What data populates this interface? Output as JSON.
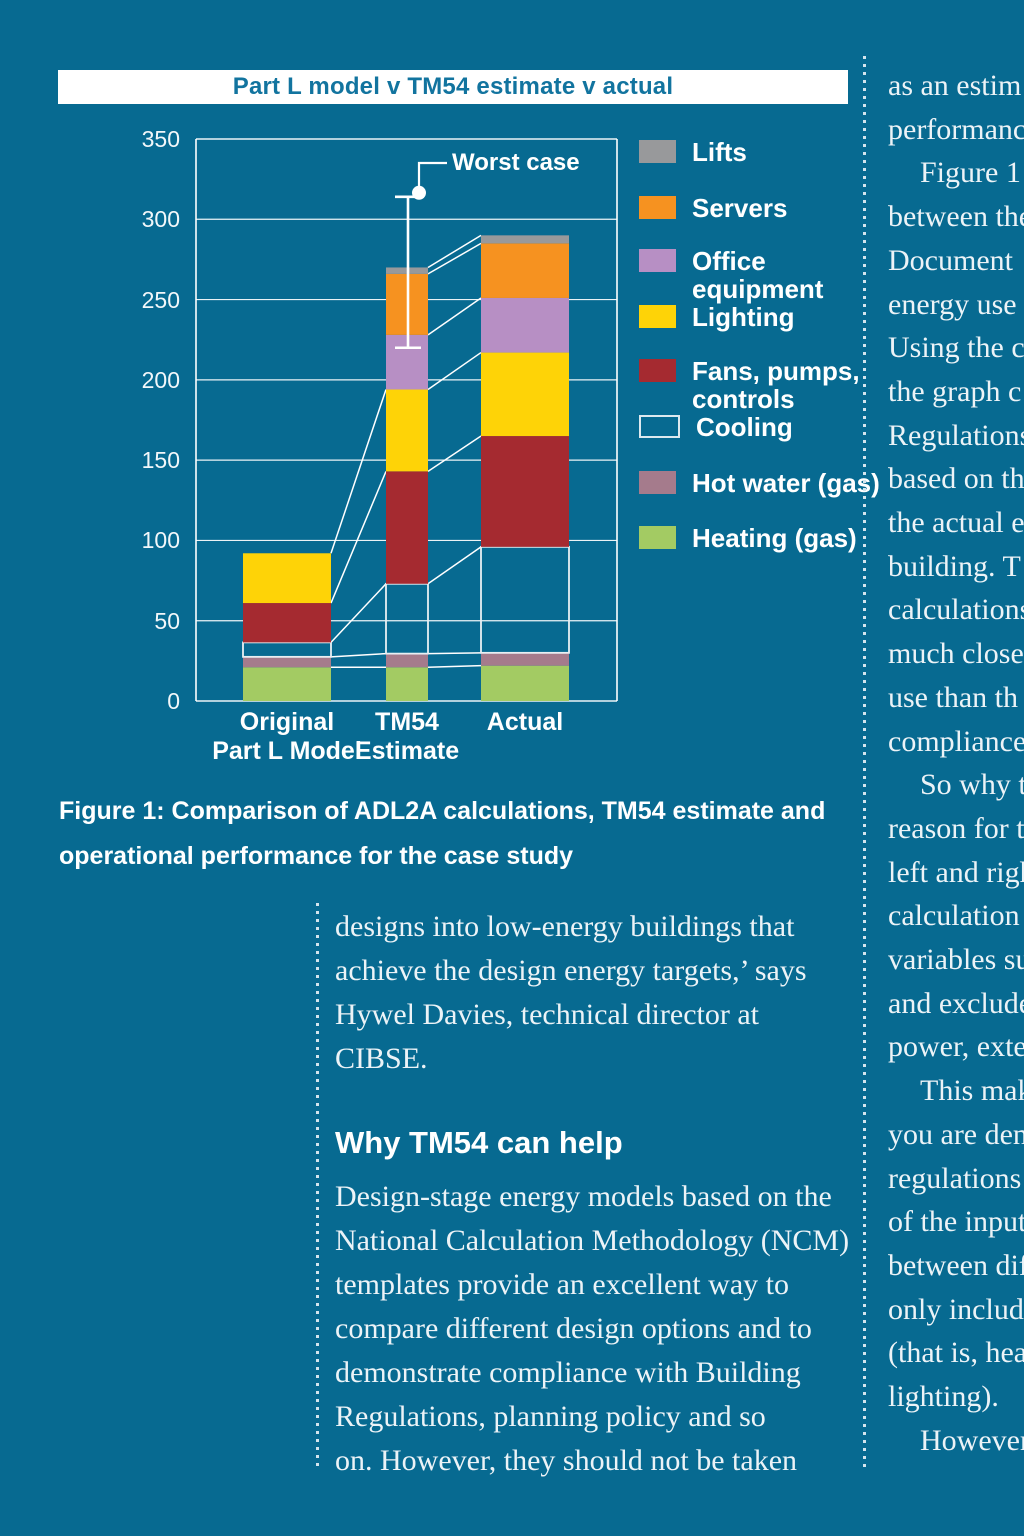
{
  "page": {
    "background": "#076a91"
  },
  "chart": {
    "title": "Part L model v TM54 estimate v actual",
    "title_color": "#12749f"
  },
  "chart_data": {
    "type": "bar",
    "stacked": true,
    "title": "Part L model v TM54 estimate v actual",
    "categories": [
      "Original Part L Model",
      "TM54 Estimate",
      "Actual"
    ],
    "category_label_lines": [
      [
        "Original",
        "Part L Model"
      ],
      [
        "TM54",
        "Estimate"
      ],
      [
        "Actual"
      ]
    ],
    "series": [
      {
        "name": "Heating (gas)",
        "color": "#a3cb63",
        "values": [
          21,
          21,
          22
        ]
      },
      {
        "name": "Hot water (gas)",
        "color": "#a57b8c",
        "values": [
          6.5,
          8.5,
          8
        ]
      },
      {
        "name": "Cooling",
        "color": "outline",
        "values": [
          9,
          43.5,
          66
        ]
      },
      {
        "name": "Fans, pumps, controls",
        "color": "#a52a30",
        "values": [
          24.5,
          70,
          69
        ]
      },
      {
        "name": "Lighting",
        "color": "#fed307",
        "values": [
          31,
          51,
          52
        ]
      },
      {
        "name": "Office equipment",
        "color": "#b78fc4",
        "values": [
          0,
          34,
          34
        ]
      },
      {
        "name": "Servers",
        "color": "#f69220",
        "values": [
          0,
          38,
          34
        ]
      },
      {
        "name": "Lifts",
        "color": "#98999b",
        "values": [
          0,
          4,
          5
        ]
      }
    ],
    "totals": [
      92,
      270,
      290
    ],
    "error_bar": {
      "category": "TM54 Estimate",
      "label": "Worst case",
      "low": 220,
      "high": 314
    },
    "connectors": [
      {
        "from": 0,
        "boundaries": [
          0,
          1,
          2,
          3,
          4
        ]
      },
      {
        "from": 1,
        "boundaries": [
          0,
          1,
          2,
          3,
          4,
          5,
          6,
          7
        ]
      }
    ],
    "ylim": [
      0,
      350
    ],
    "y_ticks": [
      0,
      50,
      100,
      150,
      200,
      250,
      300,
      350
    ],
    "grid": true,
    "legend_position": "right",
    "legend": [
      {
        "label_lines": [
          "Lifts"
        ],
        "color": "#98999b"
      },
      {
        "label_lines": [
          "Servers"
        ],
        "color": "#f69220"
      },
      {
        "label_lines": [
          "Office",
          "equipment"
        ],
        "color": "#b78fc4"
      },
      {
        "label_lines": [
          "Lighting"
        ],
        "color": "#fed307"
      },
      {
        "label_lines": [
          "Fans, pumps,",
          "controls"
        ],
        "color": "#a52a30"
      },
      {
        "label_lines": [
          "Cooling"
        ],
        "color": "outline"
      },
      {
        "label_lines": [
          "Hot water (gas)"
        ],
        "color": "#a57b8c"
      },
      {
        "label_lines": [
          "Heating (gas)"
        ],
        "color": "#a3cb63"
      }
    ]
  },
  "caption": {
    "line1": "Figure 1: Comparison of ADL2A calculations, TM54 estimate and",
    "line2": "operational performance for the case study"
  },
  "left_column": {
    "para1": [
      "designs into low-energy buildings that",
      "achieve the design energy targets,’ says",
      "Hywel Davies, technical director at",
      "CIBSE."
    ],
    "heading": "Why TM54 can help",
    "para2": [
      "Design-stage energy models based on the",
      "National Calculation Methodology (NCM)",
      "templates provide an excellent way to",
      "compare different design options and to",
      "demonstrate compliance with Building",
      "Regulations, planning policy and so",
      "on. However, they should not be taken"
    ]
  },
  "right_column": {
    "lines": [
      "as an estim",
      "performanc",
      "Figure 1 i",
      "between the",
      "Document",
      "energy use",
      "Using the c",
      "the graph c",
      "Regulations",
      "based on th",
      "the actual e",
      "building. T",
      "calculations",
      "much close",
      "use than th",
      "compliance",
      "So why t",
      "reason for t",
      "left and righ",
      "calculation",
      "variables su",
      "and exclude",
      "power, exte",
      "This mak",
      "you are den",
      "regulations",
      "of the input",
      "between dif",
      "only includ",
      "(that is, hea",
      "lighting).",
      "However"
    ],
    "indented_line_indexes": [
      2,
      16,
      23,
      31
    ]
  }
}
